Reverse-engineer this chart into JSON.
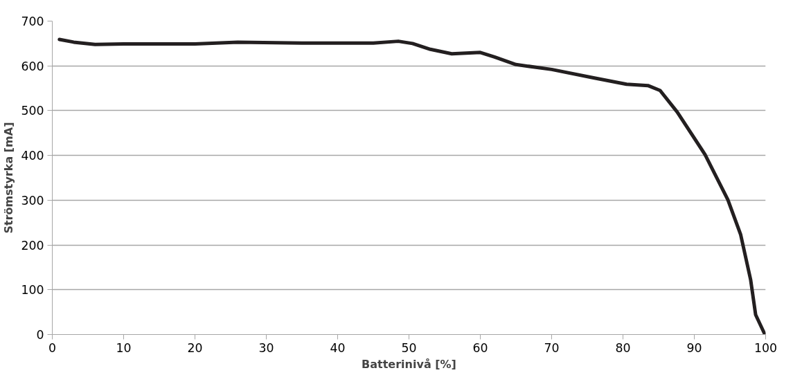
{
  "chart_data": {
    "type": "line",
    "xlabel": "Batterinivå [%]",
    "ylabel": "Strömstyrka [mA]",
    "x": [
      1,
      3,
      6,
      10,
      20,
      26,
      35,
      45,
      48.5,
      50.5,
      53,
      56,
      60,
      62,
      65,
      70,
      76,
      80.5,
      83.5,
      85.2,
      87.6,
      91.5,
      94.7,
      96.5,
      97.9,
      98.6,
      99.9
    ],
    "series": [
      {
        "color": "#231f20",
        "values": [
          659,
          653,
          648,
          649,
          649,
          653,
          651,
          651,
          655,
          650,
          637,
          627,
          630,
          620,
          603,
          592,
          573,
          559,
          556,
          545,
          497,
          402,
          301,
          223,
          122,
          44,
          0
        ]
      }
    ],
    "xlim": [
      0,
      100
    ],
    "ylim": [
      0,
      700
    ],
    "xticks": [
      0,
      10,
      20,
      30,
      40,
      50,
      60,
      70,
      80,
      90,
      100
    ],
    "yticks": [
      0,
      100,
      200,
      300,
      400,
      500,
      600,
      700
    ],
    "grid": "y",
    "marker": "none",
    "line_style": "solid"
  }
}
